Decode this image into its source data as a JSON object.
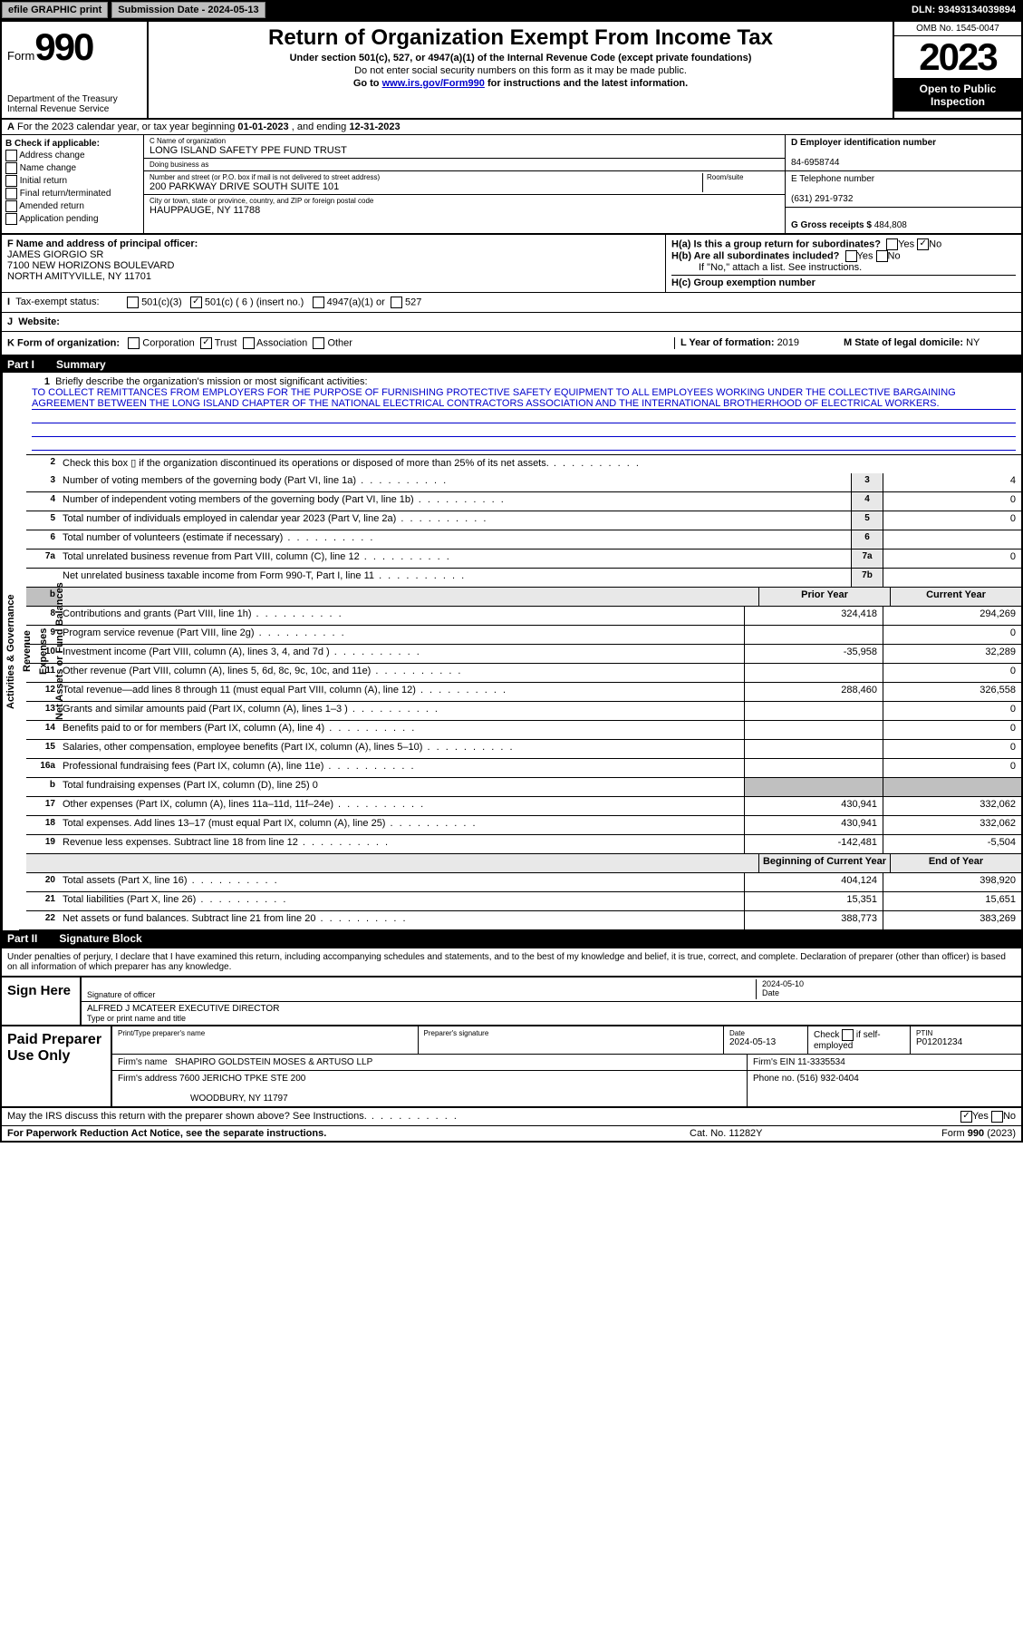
{
  "topbar": {
    "efile": "efile GRAPHIC print",
    "submission_label": "Submission Date - ",
    "submission_date": "2024-05-13",
    "dln_label": "DLN: ",
    "dln": "93493134039894"
  },
  "header": {
    "form_label": "Form",
    "form_number": "990",
    "dept": "Department of the Treasury\nInternal Revenue Service",
    "title": "Return of Organization Exempt From Income Tax",
    "subtitle": "Under section 501(c), 527, or 4947(a)(1) of the Internal Revenue Code (except private foundations)",
    "ssn_warning": "Do not enter social security numbers on this form as it may be made public.",
    "goto_pre": "Go to ",
    "goto_link": "www.irs.gov/Form990",
    "goto_post": " for instructions and the latest information.",
    "omb": "OMB No. 1545-0047",
    "year": "2023",
    "inspection": "Open to Public Inspection"
  },
  "row_a": {
    "label": "A",
    "text_pre": "For the 2023 calendar year, or tax year beginning ",
    "begin": "01-01-2023",
    "text_mid": " , and ending ",
    "end": "12-31-2023"
  },
  "col_b": {
    "label": "B Check if applicable:",
    "opts": [
      "Address change",
      "Name change",
      "Initial return",
      "Final return/terminated",
      "Amended return",
      "Application pending"
    ]
  },
  "col_c": {
    "name_label": "C Name of organization",
    "name": "LONG ISLAND SAFETY PPE FUND TRUST",
    "dba_label": "Doing business as",
    "dba": "",
    "addr_label": "Number and street (or P.O. box if mail is not delivered to street address)",
    "addr": "200 PARKWAY DRIVE SOUTH SUITE 101",
    "room_label": "Room/suite",
    "city_label": "City or town, state or province, country, and ZIP or foreign postal code",
    "city": "HAUPPAUGE, NY  11788"
  },
  "col_de": {
    "d_label": "D Employer identification number",
    "ein": "84-6958744",
    "e_label": "E Telephone number",
    "phone": "(631) 291-9732",
    "g_label": "G Gross receipts $ ",
    "gross": "484,808"
  },
  "col_f": {
    "label": "F Name and address of principal officer:",
    "name": "JAMES GIORGIO SR",
    "addr1": "7100 NEW HORIZONS BOULEVARD",
    "addr2": "NORTH AMITYVILLE, NY  11701"
  },
  "col_h": {
    "ha": "H(a)  Is this a group return for subordinates?",
    "hb": "H(b)  Are all subordinates included?",
    "hb_note": "If \"No,\" attach a list. See instructions.",
    "hc": "H(c)  Group exemption number ",
    "yes": "Yes",
    "no": "No"
  },
  "row_i": {
    "label": "I",
    "title": "Tax-exempt status:",
    "o1": "501(c)(3)",
    "o2": "501(c) ( 6 ) (insert no.)",
    "o3": "4947(a)(1) or",
    "o4": "527"
  },
  "row_j": {
    "label": "J",
    "title": "Website:"
  },
  "row_k": {
    "label": "K Form of organization:",
    "opts": [
      "Corporation",
      "Trust",
      "Association",
      "Other"
    ],
    "l_label": "L Year of formation: ",
    "l_val": "2019",
    "m_label": "M State of legal domicile: ",
    "m_val": "NY"
  },
  "part1": {
    "label": "Part I",
    "title": "Summary"
  },
  "mission": {
    "num": "1",
    "prompt": "Briefly describe the organization's mission or most significant activities:",
    "text": "TO COLLECT REMITTANCES FROM EMPLOYERS FOR THE PURPOSE OF FURNISHING PROTECTIVE SAFETY EQUIPMENT TO ALL EMPLOYEES WORKING UNDER THE COLLECTIVE BARGAINING AGREEMENT BETWEEN THE LONG ISLAND CHAPTER OF THE NATIONAL ELECTRICAL CONTRACTORS ASSOCIATION AND THE INTERNATIONAL BROTHERHOOD OF ELECTRICAL WORKERS."
  },
  "side_labels": {
    "gov": "Activities & Governance",
    "rev": "Revenue",
    "exp": "Expenses",
    "net": "Net Assets or Fund Balances"
  },
  "lines_small": [
    {
      "n": "2",
      "d": "Check this box  ▯  if the organization discontinued its operations or disposed of more than 25% of its net assets.",
      "box": "",
      "v": ""
    },
    {
      "n": "3",
      "d": "Number of voting members of the governing body (Part VI, line 1a)",
      "box": "3",
      "v": "4"
    },
    {
      "n": "4",
      "d": "Number of independent voting members of the governing body (Part VI, line 1b)",
      "box": "4",
      "v": "0"
    },
    {
      "n": "5",
      "d": "Total number of individuals employed in calendar year 2023 (Part V, line 2a)",
      "box": "5",
      "v": "0"
    },
    {
      "n": "6",
      "d": "Total number of volunteers (estimate if necessary)",
      "box": "6",
      "v": ""
    },
    {
      "n": "7a",
      "d": "Total unrelated business revenue from Part VIII, column (C), line 12",
      "box": "7a",
      "v": "0"
    },
    {
      "n": "",
      "d": "Net unrelated business taxable income from Form 990-T, Part I, line 11",
      "box": "7b",
      "v": ""
    }
  ],
  "col_headers": {
    "prior": "Prior Year",
    "current": "Current Year"
  },
  "rev_lines": [
    {
      "n": "8",
      "d": "Contributions and grants (Part VIII, line 1h)",
      "p": "324,418",
      "c": "294,269"
    },
    {
      "n": "9",
      "d": "Program service revenue (Part VIII, line 2g)",
      "p": "",
      "c": "0"
    },
    {
      "n": "10",
      "d": "Investment income (Part VIII, column (A), lines 3, 4, and 7d )",
      "p": "-35,958",
      "c": "32,289"
    },
    {
      "n": "11",
      "d": "Other revenue (Part VIII, column (A), lines 5, 6d, 8c, 9c, 10c, and 11e)",
      "p": "",
      "c": "0"
    },
    {
      "n": "12",
      "d": "Total revenue—add lines 8 through 11 (must equal Part VIII, column (A), line 12)",
      "p": "288,460",
      "c": "326,558"
    }
  ],
  "exp_lines": [
    {
      "n": "13",
      "d": "Grants and similar amounts paid (Part IX, column (A), lines 1–3 )",
      "p": "",
      "c": "0"
    },
    {
      "n": "14",
      "d": "Benefits paid to or for members (Part IX, column (A), line 4)",
      "p": "",
      "c": "0"
    },
    {
      "n": "15",
      "d": "Salaries, other compensation, employee benefits (Part IX, column (A), lines 5–10)",
      "p": "",
      "c": "0"
    },
    {
      "n": "16a",
      "d": "Professional fundraising fees (Part IX, column (A), line 11e)",
      "p": "",
      "c": "0"
    },
    {
      "n": "b",
      "d": "Total fundraising expenses (Part IX, column (D), line 25) 0",
      "shade": true
    },
    {
      "n": "17",
      "d": "Other expenses (Part IX, column (A), lines 11a–11d, 11f–24e)",
      "p": "430,941",
      "c": "332,062"
    },
    {
      "n": "18",
      "d": "Total expenses. Add lines 13–17 (must equal Part IX, column (A), line 25)",
      "p": "430,941",
      "c": "332,062"
    },
    {
      "n": "19",
      "d": "Revenue less expenses. Subtract line 18 from line 12",
      "p": "-142,481",
      "c": "-5,504"
    }
  ],
  "net_headers": {
    "begin": "Beginning of Current Year",
    "end": "End of Year"
  },
  "net_lines": [
    {
      "n": "20",
      "d": "Total assets (Part X, line 16)",
      "p": "404,124",
      "c": "398,920"
    },
    {
      "n": "21",
      "d": "Total liabilities (Part X, line 26)",
      "p": "15,351",
      "c": "15,651"
    },
    {
      "n": "22",
      "d": "Net assets or fund balances. Subtract line 21 from line 20",
      "p": "388,773",
      "c": "383,269"
    }
  ],
  "part2": {
    "label": "Part II",
    "title": "Signature Block"
  },
  "perjury": "Under penalties of perjury, I declare that I have examined this return, including accompanying schedules and statements, and to the best of my knowledge and belief, it is true, correct, and complete. Declaration of preparer (other than officer) is based on all information of which preparer has any knowledge.",
  "sign": {
    "left": "Sign Here",
    "sig_label": "Signature of officer",
    "date_label": "Date",
    "date": "2024-05-10",
    "name": "ALFRED J MCATEER  EXECUTIVE DIRECTOR",
    "name_label": "Type or print name and title"
  },
  "paid": {
    "left": "Paid Preparer Use Only",
    "h1": "Print/Type preparer's name",
    "h2": "Preparer's signature",
    "h3": "Date",
    "date": "2024-05-13",
    "h4_pre": "Check",
    "h4_post": "if self-employed",
    "h5": "PTIN",
    "ptin": "P01201234",
    "firm_label": "Firm's name",
    "firm": "SHAPIRO GOLDSTEIN MOSES & ARTUSO LLP",
    "ein_label": "Firm's EIN ",
    "ein": "11-3335534",
    "addr_label": "Firm's address",
    "addr1": "7600 JERICHO TPKE STE 200",
    "addr2": "WOODBURY, NY  11797",
    "phone_label": "Phone no. ",
    "phone": "(516) 932-0404"
  },
  "discuss": {
    "text": "May the IRS discuss this return with the preparer shown above? See Instructions.",
    "yes": "Yes",
    "no": "No"
  },
  "footer": {
    "l": "For Paperwork Reduction Act Notice, see the separate instructions.",
    "m": "Cat. No. 11282Y",
    "r": "Form 990 (2023)"
  },
  "colors": {
    "black": "#000000",
    "white": "#ffffff",
    "gray_btn": "#bfbfbf",
    "gray_shade": "#c0c0c0",
    "gray_box": "#e8e8e8",
    "link": "#0000cc"
  },
  "typography": {
    "base_fontsize": 11,
    "title_fontsize": 24,
    "year_fontsize": 42
  }
}
